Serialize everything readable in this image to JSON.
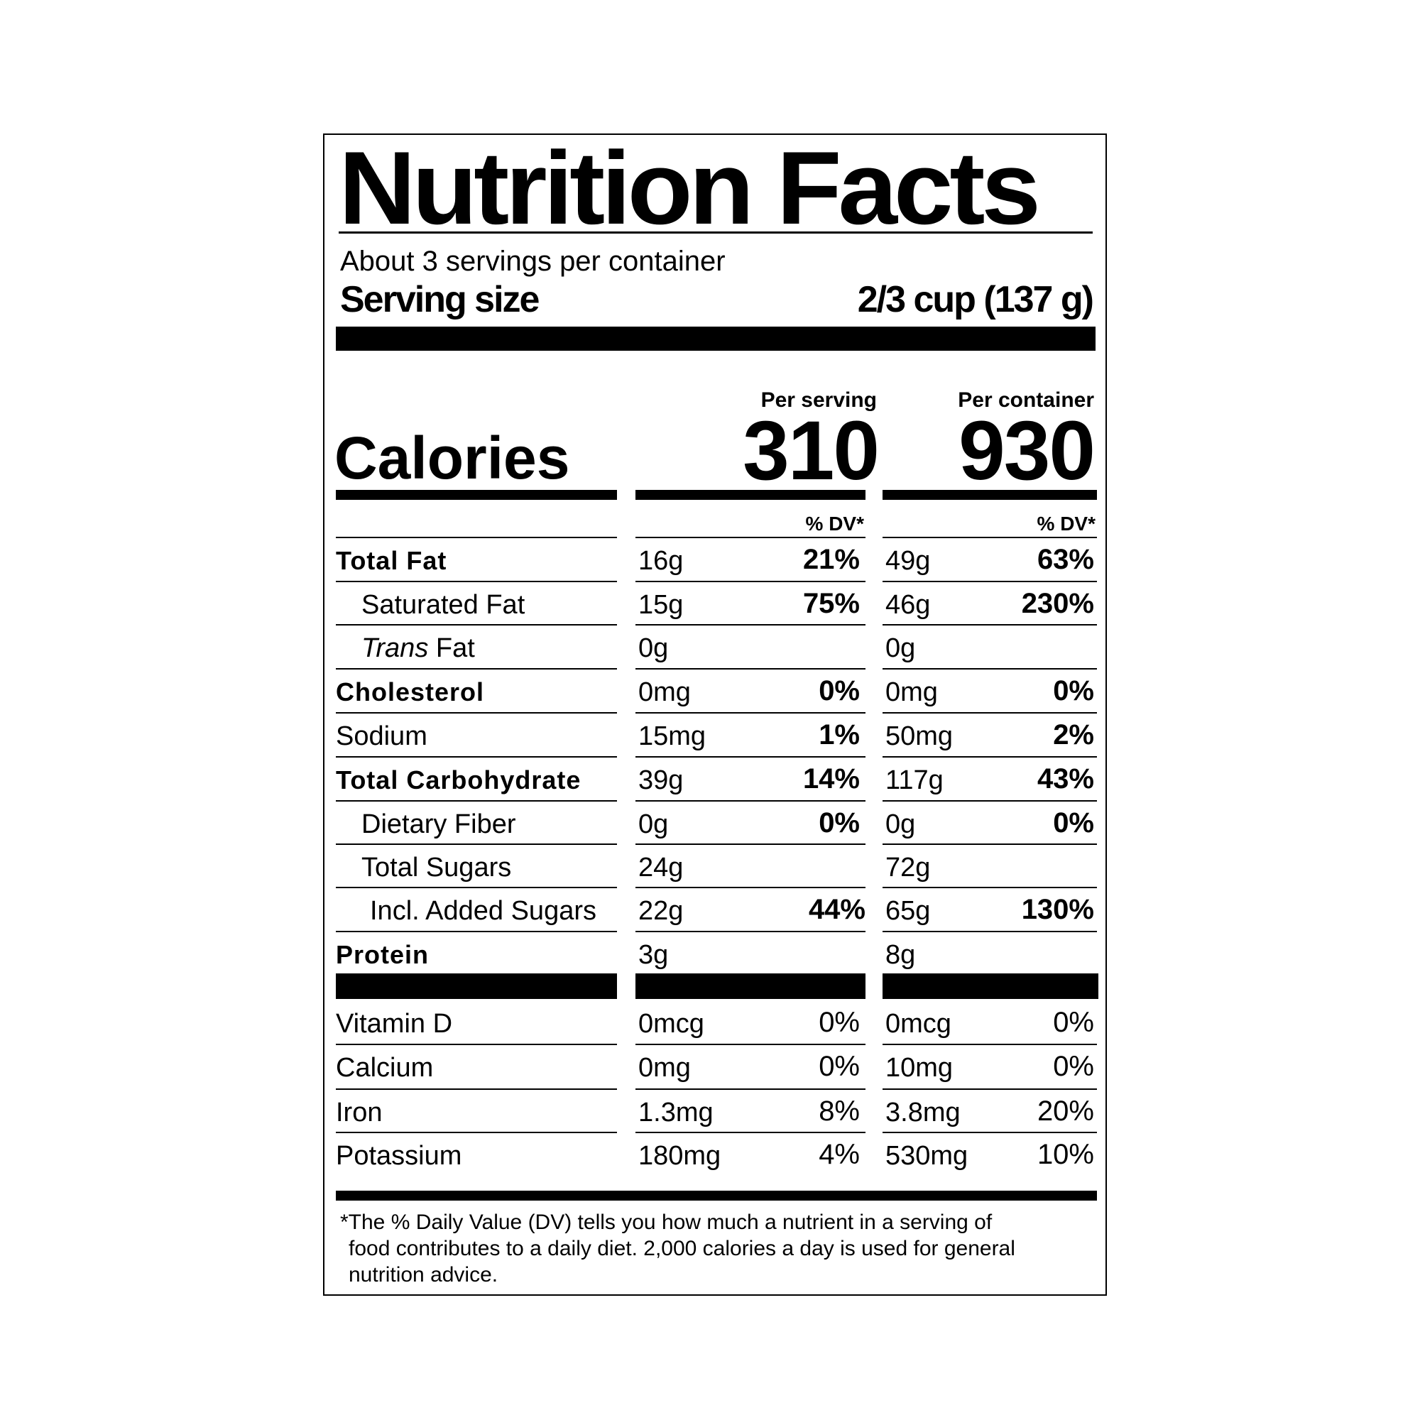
{
  "title": "Nutrition Facts",
  "servings_per_container": "About 3 servings per container",
  "serving_size_label": "Serving size",
  "serving_size_value": "2/3 cup (137 g)",
  "per_serving_label": "Per serving",
  "per_container_label": "Per container",
  "calories_label": "Calories",
  "calories_per_serving": "310",
  "calories_per_container": "930",
  "dv_header": "% DV*",
  "nutrients": [
    {
      "name": "Total Fat",
      "serving_amount": "16g",
      "serving_dv": "21%",
      "container_amount": "49g",
      "container_dv": "63%"
    },
    {
      "name": "Saturated Fat",
      "serving_amount": "15g",
      "serving_dv": "75%",
      "container_amount": "46g",
      "container_dv": "230%"
    },
    {
      "name_italic": "Trans",
      "name_rest": " Fat",
      "serving_amount": "0g",
      "serving_dv": "",
      "container_amount": "0g",
      "container_dv": ""
    },
    {
      "name": "Cholesterol",
      "serving_amount": "0mg",
      "serving_dv": "0%",
      "container_amount": "0mg",
      "container_dv": "0%"
    },
    {
      "name": "Sodium",
      "serving_amount": "15mg",
      "serving_dv": "1%",
      "container_amount": "50mg",
      "container_dv": "2%"
    },
    {
      "name": "Total Carbohydrate",
      "serving_amount": "39g",
      "serving_dv": "14%",
      "container_amount": "117g",
      "container_dv": "43%"
    },
    {
      "name": "Dietary Fiber",
      "serving_amount": "0g",
      "serving_dv": "0%",
      "container_amount": "0g",
      "container_dv": "0%"
    },
    {
      "name": "Total Sugars",
      "serving_amount": "24g",
      "serving_dv": "",
      "container_amount": "72g",
      "container_dv": ""
    },
    {
      "name": "Incl. Added Sugars",
      "serving_amount": "22g",
      "serving_dv": "44%",
      "container_amount": "65g",
      "container_dv": "130%"
    },
    {
      "name": "Protein",
      "serving_amount": "3g",
      "serving_dv": "",
      "container_amount": "8g",
      "container_dv": ""
    }
  ],
  "vitamins": [
    {
      "name": "Vitamin D",
      "serving_amount": "0mcg",
      "serving_dv": "0%",
      "container_amount": "0mcg",
      "container_dv": "0%"
    },
    {
      "name": "Calcium",
      "serving_amount": "0mg",
      "serving_dv": "0%",
      "container_amount": "10mg",
      "container_dv": "0%"
    },
    {
      "name": "Iron",
      "serving_amount": "1.3mg",
      "serving_dv": "8%",
      "container_amount": "3.8mg",
      "container_dv": "20%"
    },
    {
      "name": "Potassium",
      "serving_amount": "180mg",
      "serving_dv": "4%",
      "container_amount": "530mg",
      "container_dv": "10%"
    }
  ],
  "footnote": {
    "line1": "*The % Daily Value (DV) tells you how much a nutrient in a serving of",
    "line2": "food contributes to a daily diet. 2,000 calories a day is used for general",
    "line3": "nutrition advice."
  }
}
